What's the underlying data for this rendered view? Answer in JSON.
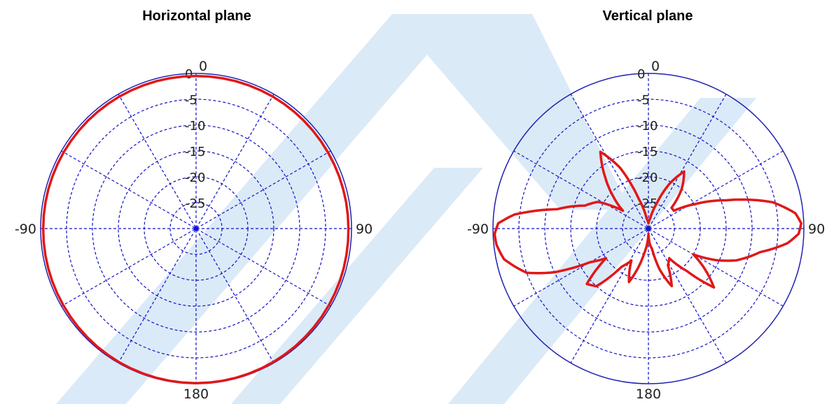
{
  "colors": {
    "grid": "#1010c8",
    "outer_circle": "#2020b0",
    "trace": "#e01818",
    "watermark": "#cfe3f5"
  },
  "chart_data": [
    {
      "type": "polar",
      "title": "Horizontal plane",
      "angle_labels": [
        "0",
        "90",
        "180",
        "-90"
      ],
      "radial_tick_labels": [
        "0",
        "-5",
        "-10",
        "-15",
        "-20",
        "-25"
      ],
      "rlim": [
        -30,
        0
      ],
      "grid": true,
      "series": [
        {
          "angles_deg": [
            0,
            30,
            60,
            90,
            120,
            150,
            180,
            210,
            240,
            270,
            300,
            330
          ],
          "values_db": [
            -0.5,
            -0.5,
            -0.6,
            -0.6,
            -0.4,
            -0.2,
            -0.1,
            -0.2,
            -0.4,
            -0.5,
            -0.5,
            -0.5
          ]
        }
      ]
    },
    {
      "type": "polar",
      "title": "Vertical plane",
      "angle_labels": [
        "0",
        "90",
        "180",
        "-90"
      ],
      "radial_tick_labels": [
        "0",
        "-5",
        "-10",
        "-15",
        "-20",
        "-25"
      ],
      "rlim": [
        -30,
        0
      ],
      "grid": true,
      "series": [
        {
          "angles_deg": [
            0,
            10,
            18,
            25,
            32,
            40,
            48,
            55,
            62,
            70,
            78,
            84,
            88,
            92,
            96,
            102,
            110,
            115,
            120,
            125,
            132,
            138,
            145,
            152,
            158,
            165,
            170,
            175,
            180,
            185,
            190,
            195,
            200,
            208,
            215,
            222,
            228,
            235,
            240,
            245,
            250,
            258,
            264,
            268,
            272,
            276,
            282,
            290,
            298,
            305,
            312,
            320,
            328,
            335,
            342,
            350,
            360
          ],
          "values_db": [
            -29,
            -28,
            -25,
            -20.5,
            -17,
            -20,
            -24,
            -24,
            -20,
            -14,
            -5.5,
            -1.5,
            -0.5,
            -1,
            -3,
            -8,
            -12,
            -15.5,
            -20,
            -17,
            -13,
            -19,
            -23,
            -22,
            -18,
            -22,
            -26,
            -27,
            -29,
            -27,
            -25,
            -22,
            -19,
            -23,
            -21,
            -15,
            -14,
            -20,
            -17,
            -10,
            -5,
            -1.5,
            -0.5,
            -0.3,
            -1,
            -4,
            -12,
            -17,
            -19,
            -24,
            -21,
            -17,
            -12.5,
            -17,
            -24,
            -28,
            -29
          ]
        }
      ]
    }
  ]
}
